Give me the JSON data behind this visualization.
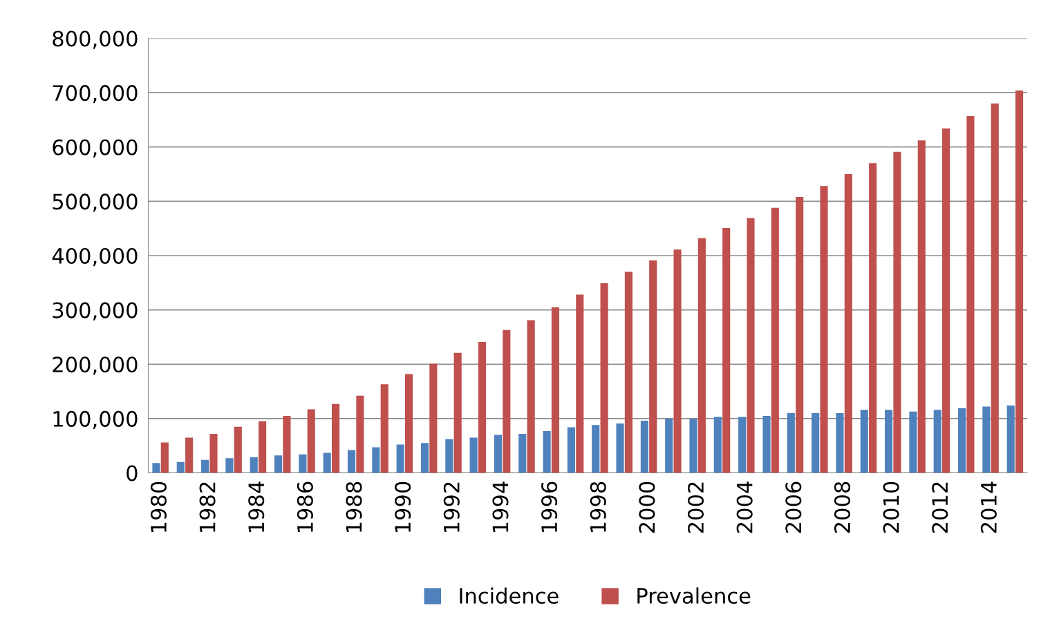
{
  "chart_data": {
    "type": "bar",
    "categories": [
      "1980",
      null,
      "1982",
      null,
      "1984",
      null,
      "1986",
      null,
      "1988",
      null,
      "1990",
      null,
      "1992",
      null,
      "1994",
      null,
      "1996",
      null,
      "1998",
      null,
      "2000",
      null,
      "2002",
      null,
      "2004",
      null,
      "2006",
      null,
      "2008",
      null,
      "2010",
      null,
      "2012",
      null,
      "2014",
      null
    ],
    "series": [
      {
        "name": "Incidence",
        "color": "#4f81bd",
        "values": [
          18000,
          20000,
          24000,
          27000,
          29000,
          32000,
          34000,
          37000,
          42000,
          47000,
          52000,
          55000,
          62000,
          65000,
          70000,
          72000,
          77000,
          84000,
          88000,
          91000,
          96000,
          100000,
          100000,
          103000,
          103000,
          105000,
          110000,
          110000,
          110000,
          116000,
          116000,
          113000,
          116000,
          119000,
          122000,
          124000
        ]
      },
      {
        "name": "Prevalence",
        "color": "#c0504d",
        "values": [
          56000,
          65000,
          72000,
          85000,
          95000,
          105000,
          117000,
          127000,
          142000,
          163000,
          182000,
          201000,
          221000,
          241000,
          263000,
          281000,
          305000,
          328000,
          349000,
          370000,
          391000,
          411000,
          432000,
          451000,
          469000,
          488000,
          508000,
          528000,
          550000,
          570000,
          591000,
          612000,
          634000,
          657000,
          680000,
          704000
        ]
      }
    ],
    "ylim": [
      0,
      800000
    ],
    "yticks": [
      0,
      {
        "value": 100000,
        "label": "100,000"
      },
      {
        "value": 200000,
        "label": "200,000"
      },
      {
        "value": 300000,
        "label": "300,000"
      },
      {
        "value": 400000,
        "label": "400,000"
      },
      {
        "value": 500000,
        "label": "500,000"
      },
      {
        "value": 600000,
        "label": "600,000"
      },
      {
        "value": 700000,
        "label": "700,000"
      },
      {
        "value": 800000,
        "label": "800,000"
      }
    ],
    "grid": "y",
    "legend": "bottom"
  }
}
